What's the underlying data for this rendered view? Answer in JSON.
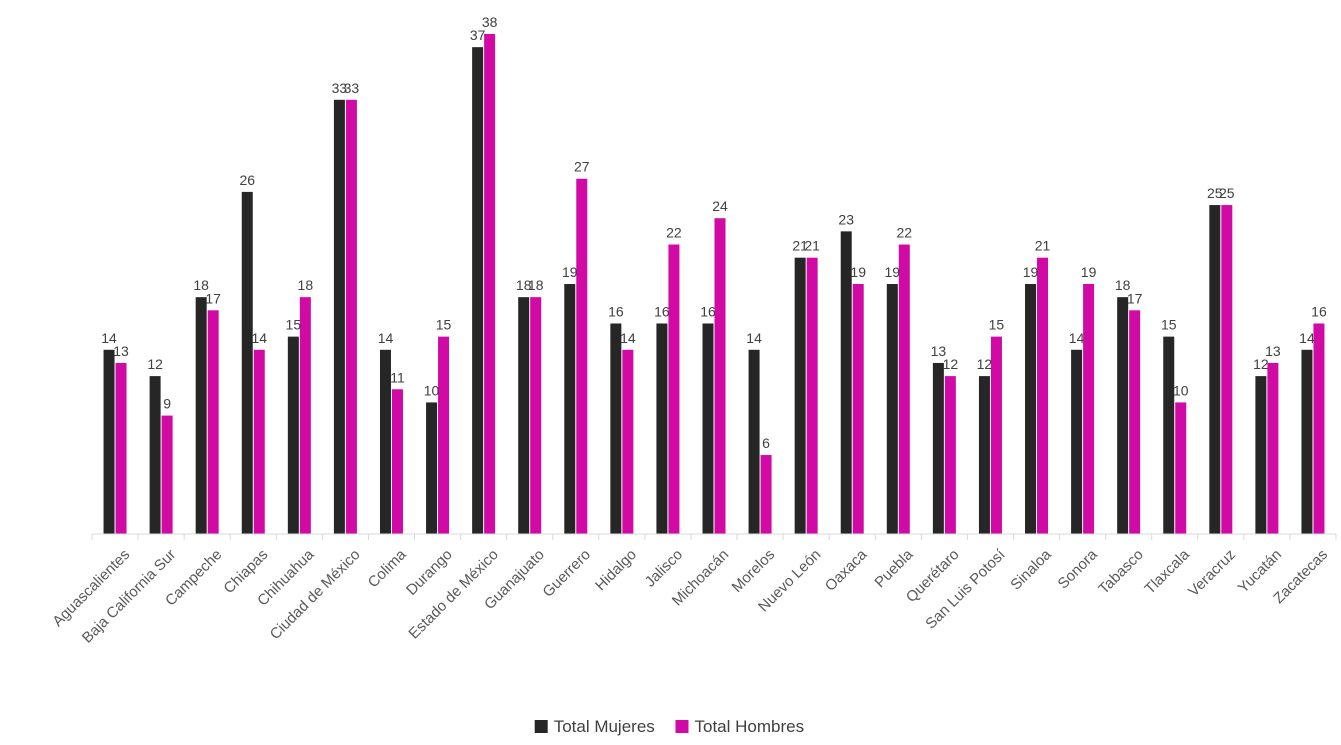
{
  "chart_data": {
    "type": "bar",
    "title": "",
    "xlabel": "",
    "ylabel": "",
    "ylim": [
      0,
      38
    ],
    "grid": false,
    "legend_position": "bottom",
    "categories": [
      "Aguascalientes",
      "Baja California Sur",
      "Campeche",
      "Chiapas",
      "Chihuahua",
      "Ciudad de México",
      "Colima",
      "Durango",
      "Estado de México",
      "Guanajuato",
      "Guerrero",
      "Hidalgo",
      "Jalisco",
      "Michoacán",
      "Morelos",
      "Nuevo León",
      "Oaxaca",
      "Puebla",
      "Querétaro",
      "San Luis Potosí",
      "Sinaloa",
      "Sonora",
      "Tabasco",
      "Tlaxcala",
      "Veracruz",
      "Yucatán",
      "Zacatecas"
    ],
    "series": [
      {
        "name": "Total Mujeres",
        "color": "#262626",
        "values": [
          14,
          12,
          18,
          26,
          15,
          33,
          14,
          10,
          37,
          18,
          19,
          16,
          16,
          16,
          14,
          21,
          23,
          19,
          13,
          12,
          19,
          14,
          18,
          15,
          25,
          12,
          14
        ]
      },
      {
        "name": "Total Hombres",
        "color": "#d10aa6",
        "values": [
          13,
          9,
          17,
          14,
          18,
          33,
          11,
          15,
          38,
          18,
          27,
          14,
          22,
          24,
          6,
          21,
          19,
          22,
          12,
          15,
          21,
          19,
          17,
          10,
          25,
          13,
          16
        ]
      }
    ]
  }
}
